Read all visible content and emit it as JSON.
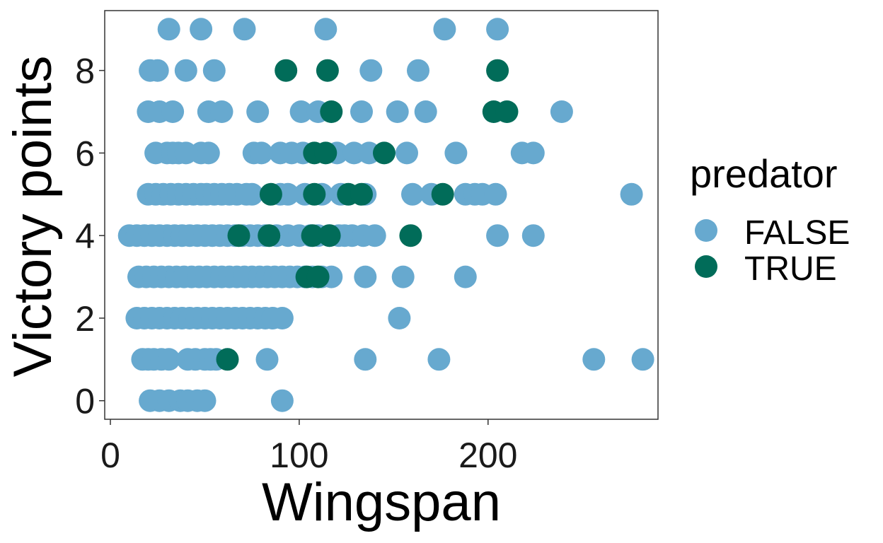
{
  "chart_data": {
    "type": "scatter",
    "title": "",
    "xlabel": "Wingspan",
    "ylabel": "Victory points",
    "xlim": [
      -3,
      290
    ],
    "ylim": [
      -0.45,
      9.45
    ],
    "xticks": [
      0,
      100,
      200
    ],
    "yticks": [
      0,
      2,
      4,
      6,
      8
    ],
    "xtick_labels": [
      "0",
      "100",
      "200"
    ],
    "ytick_labels": [
      "0",
      "2",
      "4",
      "6",
      "8"
    ],
    "grid": false,
    "legend": {
      "title": "predator",
      "position": "right",
      "entries": [
        {
          "label": "FALSE",
          "color": "#67a9cf"
        },
        {
          "label": "TRUE",
          "color": "#016c59"
        }
      ]
    },
    "series": [
      {
        "name": "FALSE",
        "color": "#67a9cf",
        "points": [
          [
            31,
            9
          ],
          [
            48,
            9
          ],
          [
            71,
            9
          ],
          [
            114,
            9
          ],
          [
            177,
            9
          ],
          [
            205,
            9
          ],
          [
            21,
            8
          ],
          [
            25,
            8
          ],
          [
            40,
            8
          ],
          [
            55,
            8
          ],
          [
            138,
            8
          ],
          [
            163,
            8
          ],
          [
            20,
            7
          ],
          [
            26,
            7
          ],
          [
            33,
            7
          ],
          [
            52,
            7
          ],
          [
            59,
            7
          ],
          [
            78,
            7
          ],
          [
            101,
            7
          ],
          [
            110,
            7
          ],
          [
            133,
            7
          ],
          [
            152,
            7
          ],
          [
            167,
            7
          ],
          [
            239,
            7
          ],
          [
            24,
            6
          ],
          [
            30,
            6
          ],
          [
            33,
            6
          ],
          [
            36,
            6
          ],
          [
            40,
            6
          ],
          [
            48,
            6
          ],
          [
            52,
            6
          ],
          [
            76,
            6
          ],
          [
            80,
            6
          ],
          [
            90,
            6
          ],
          [
            96,
            6
          ],
          [
            102,
            6
          ],
          [
            120,
            6
          ],
          [
            129,
            6
          ],
          [
            137,
            6
          ],
          [
            157,
            6
          ],
          [
            183,
            6
          ],
          [
            218,
            6
          ],
          [
            224,
            6
          ],
          [
            20,
            5
          ],
          [
            24,
            5
          ],
          [
            28,
            5
          ],
          [
            32,
            5
          ],
          [
            36,
            5
          ],
          [
            40,
            5
          ],
          [
            44,
            5
          ],
          [
            48,
            5
          ],
          [
            51,
            5
          ],
          [
            55,
            5
          ],
          [
            59,
            5
          ],
          [
            63,
            5
          ],
          [
            67,
            5
          ],
          [
            72,
            5
          ],
          [
            75,
            5
          ],
          [
            90,
            5
          ],
          [
            94,
            5
          ],
          [
            103,
            5
          ],
          [
            112,
            5
          ],
          [
            122,
            5
          ],
          [
            135,
            5
          ],
          [
            160,
            5
          ],
          [
            170,
            5
          ],
          [
            188,
            5
          ],
          [
            193,
            5
          ],
          [
            197,
            5
          ],
          [
            204,
            5
          ],
          [
            276,
            5
          ],
          [
            10,
            4
          ],
          [
            14,
            4
          ],
          [
            18,
            4
          ],
          [
            22,
            4
          ],
          [
            26,
            4
          ],
          [
            30,
            4
          ],
          [
            34,
            4
          ],
          [
            38,
            4
          ],
          [
            42,
            4
          ],
          [
            46,
            4
          ],
          [
            50,
            4
          ],
          [
            54,
            4
          ],
          [
            58,
            4
          ],
          [
            62,
            4
          ],
          [
            66,
            4
          ],
          [
            70,
            4
          ],
          [
            74,
            4
          ],
          [
            78,
            4
          ],
          [
            82,
            4
          ],
          [
            88,
            4
          ],
          [
            94,
            4
          ],
          [
            100,
            4
          ],
          [
            106,
            4
          ],
          [
            110,
            4
          ],
          [
            116,
            4
          ],
          [
            121,
            4
          ],
          [
            124,
            4
          ],
          [
            128,
            4
          ],
          [
            134,
            4
          ],
          [
            140,
            4
          ],
          [
            205,
            4
          ],
          [
            224,
            4
          ],
          [
            15,
            3
          ],
          [
            19,
            3
          ],
          [
            23,
            3
          ],
          [
            27,
            3
          ],
          [
            31,
            3
          ],
          [
            35,
            3
          ],
          [
            39,
            3
          ],
          [
            43,
            3
          ],
          [
            47,
            3
          ],
          [
            51,
            3
          ],
          [
            55,
            3
          ],
          [
            59,
            3
          ],
          [
            63,
            3
          ],
          [
            67,
            3
          ],
          [
            71,
            3
          ],
          [
            75,
            3
          ],
          [
            79,
            3
          ],
          [
            83,
            3
          ],
          [
            87,
            3
          ],
          [
            91,
            3
          ],
          [
            95,
            3
          ],
          [
            99,
            3
          ],
          [
            103,
            3
          ],
          [
            107,
            3
          ],
          [
            112,
            3
          ],
          [
            117,
            3
          ],
          [
            135,
            3
          ],
          [
            155,
            3
          ],
          [
            188,
            3
          ],
          [
            14,
            2
          ],
          [
            18,
            2
          ],
          [
            22,
            2
          ],
          [
            26,
            2
          ],
          [
            30,
            2
          ],
          [
            34,
            2
          ],
          [
            38,
            2
          ],
          [
            42,
            2
          ],
          [
            46,
            2
          ],
          [
            50,
            2
          ],
          [
            54,
            2
          ],
          [
            58,
            2
          ],
          [
            62,
            2
          ],
          [
            66,
            2
          ],
          [
            70,
            2
          ],
          [
            74,
            2
          ],
          [
            78,
            2
          ],
          [
            82,
            2
          ],
          [
            86,
            2
          ],
          [
            91,
            2
          ],
          [
            153,
            2
          ],
          [
            17,
            1
          ],
          [
            20,
            1
          ],
          [
            23,
            1
          ],
          [
            27,
            1
          ],
          [
            31,
            1
          ],
          [
            41,
            1
          ],
          [
            45,
            1
          ],
          [
            50,
            1
          ],
          [
            53,
            1
          ],
          [
            56,
            1
          ],
          [
            83,
            1
          ],
          [
            135,
            1
          ],
          [
            174,
            1
          ],
          [
            256,
            1
          ],
          [
            282,
            1
          ],
          [
            21,
            0
          ],
          [
            26,
            0
          ],
          [
            31,
            0
          ],
          [
            37,
            0
          ],
          [
            41,
            0
          ],
          [
            46,
            0
          ],
          [
            50,
            0
          ],
          [
            91,
            0
          ]
        ]
      },
      {
        "name": "TRUE",
        "color": "#016c59",
        "points": [
          [
            93,
            8
          ],
          [
            115,
            8
          ],
          [
            205,
            8
          ],
          [
            117,
            7
          ],
          [
            203,
            7
          ],
          [
            210,
            7
          ],
          [
            108,
            6
          ],
          [
            114,
            6
          ],
          [
            145,
            6
          ],
          [
            85,
            5
          ],
          [
            108,
            5
          ],
          [
            126,
            5
          ],
          [
            133,
            5
          ],
          [
            176,
            5
          ],
          [
            68,
            4
          ],
          [
            84,
            4
          ],
          [
            107,
            4
          ],
          [
            116,
            4
          ],
          [
            159,
            4
          ],
          [
            104,
            3
          ],
          [
            110,
            3
          ],
          [
            62,
            1
          ]
        ]
      }
    ]
  }
}
